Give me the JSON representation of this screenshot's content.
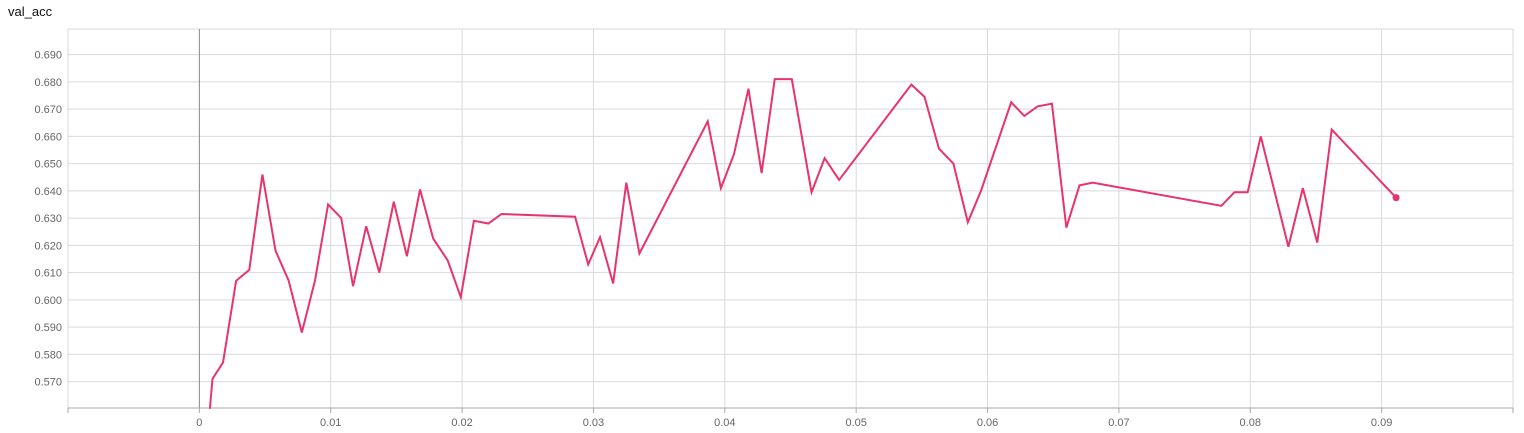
{
  "chart_data": {
    "type": "line",
    "title": "val_acc",
    "xlabel": "",
    "ylabel": "",
    "xlim": [
      -0.01,
      0.1
    ],
    "ylim": [
      0.5603,
      0.6994
    ],
    "x_ticks": [
      0,
      0.01,
      0.02,
      0.03,
      0.04,
      0.05,
      0.06,
      0.07,
      0.08,
      0.09
    ],
    "x_tick_labels": [
      "0",
      "0.01",
      "0.02",
      "0.03",
      "0.04",
      "0.05",
      "0.06",
      "0.07",
      "0.08",
      "0.09"
    ],
    "y_ticks": [
      0.57,
      0.58,
      0.59,
      0.6,
      0.61,
      0.62,
      0.63,
      0.64,
      0.65,
      0.66,
      0.67,
      0.68,
      0.69
    ],
    "y_tick_labels": [
      "0.570",
      "0.580",
      "0.590",
      "0.600",
      "0.610",
      "0.620",
      "0.630",
      "0.640",
      "0.650",
      "0.660",
      "0.670",
      "0.680",
      "0.690"
    ],
    "grid": true,
    "line_color": "#e8336d",
    "series": [
      {
        "x": [
          0.0008,
          0.001,
          0.0018,
          0.0028,
          0.0038,
          0.0048,
          0.0058,
          0.0068,
          0.0078,
          0.0088,
          0.0098,
          0.0108,
          0.0117,
          0.0127,
          0.0137,
          0.0148,
          0.0158,
          0.0168,
          0.0178,
          0.0189,
          0.0199,
          0.0209,
          0.022,
          0.023,
          0.0286,
          0.0296,
          0.0305,
          0.0315,
          0.0325,
          0.0335,
          0.0387,
          0.0397,
          0.0407,
          0.0418,
          0.0428,
          0.0438,
          0.0451,
          0.0466,
          0.0476,
          0.0487,
          0.0542,
          0.0552,
          0.0563,
          0.0574,
          0.0585,
          0.0595,
          0.0618,
          0.0628,
          0.0638,
          0.0649,
          0.066,
          0.067,
          0.068,
          0.0778,
          0.0788,
          0.0798,
          0.0808,
          0.0829,
          0.084,
          0.0851,
          0.0862,
          0.0911
        ],
        "y": [
          0.56,
          0.571,
          0.577,
          0.607,
          0.611,
          0.646,
          0.618,
          0.607,
          0.588,
          0.607,
          0.635,
          0.63,
          0.605,
          0.627,
          0.61,
          0.636,
          0.616,
          0.6405,
          0.6225,
          0.6145,
          0.601,
          0.629,
          0.628,
          0.6315,
          0.6305,
          0.613,
          0.623,
          0.606,
          0.643,
          0.617,
          0.6655,
          0.641,
          0.6535,
          0.6775,
          0.6465,
          0.681,
          0.681,
          0.6395,
          0.652,
          0.644,
          0.679,
          0.6745,
          0.6555,
          0.65,
          0.6285,
          0.64,
          0.6725,
          0.6675,
          0.671,
          0.672,
          0.6265,
          0.642,
          0.643,
          0.6345,
          0.6395,
          0.6395,
          0.66,
          0.6195,
          0.641,
          0.621,
          0.6625,
          0.6375
        ]
      }
    ]
  }
}
